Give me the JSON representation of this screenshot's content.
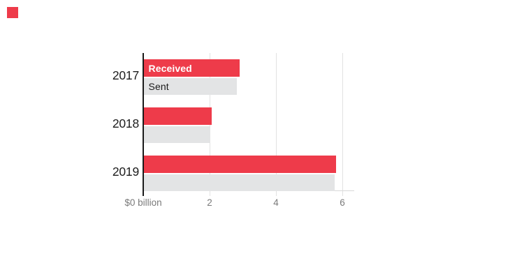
{
  "chart_data": {
    "type": "bar",
    "orientation": "horizontal",
    "title": "",
    "categories": [
      "2017",
      "2018",
      "2019"
    ],
    "series": [
      {
        "name": "Received",
        "color": "#ee3b4a",
        "values": [
          2.9,
          2.05,
          5.8
        ]
      },
      {
        "name": "Sent",
        "color": "#e3e4e5",
        "values": [
          2.8,
          2.0,
          5.75
        ]
      }
    ],
    "xlim": [
      0,
      6
    ],
    "x_ticks": [
      0,
      2,
      4,
      6
    ],
    "x_tick_labels": [
      "$0 billion",
      "2",
      "4",
      "6"
    ],
    "grid": "vertical gridlines at x ticks, extending slightly below baseline",
    "legend": "series names printed inside the first group's bars"
  },
  "colors": {
    "accent_red": "#ee3b4a",
    "bar_gray": "#e3e4e5",
    "axis_black": "#1a1a1a",
    "gridline": "#e2e2e2",
    "baseline": "#d9d9d9",
    "tick_label": "#7a7a7a",
    "year_label": "#1c1c1c"
  },
  "corner_mark": {
    "shape": "red-square",
    "color": "#ee3b4a"
  }
}
